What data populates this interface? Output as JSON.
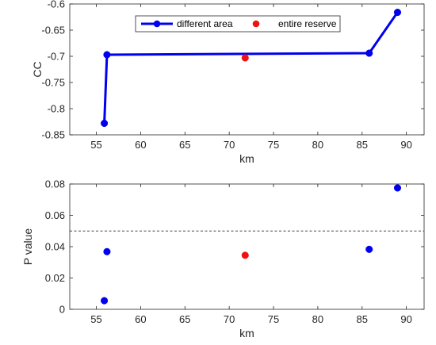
{
  "colors": {
    "series_blue": "#0000ee",
    "series_red": "#ee1111",
    "axis": "#262626",
    "threshold": "#444444"
  },
  "chart_data": [
    {
      "type": "line",
      "xlabel": "km",
      "ylabel": "CC",
      "xlim": [
        52,
        92
      ],
      "ylim": [
        -0.85,
        -0.6
      ],
      "xticks": [
        "55",
        "60",
        "65",
        "70",
        "75",
        "80",
        "85",
        "90"
      ],
      "yticks": [
        "-0.85",
        "-0.8",
        "-0.75",
        "-0.7",
        "-0.65",
        "-0.6"
      ],
      "legend_position": "top-center",
      "grid": false,
      "series": [
        {
          "name": "different area",
          "style": "line-marker",
          "x": [
            55.9,
            56.2,
            85.8,
            89.0
          ],
          "y": [
            -0.828,
            -0.697,
            -0.694,
            -0.616
          ]
        },
        {
          "name": "entire reserve",
          "style": "marker",
          "x": [
            71.8
          ],
          "y": [
            -0.703
          ]
        }
      ]
    },
    {
      "type": "scatter",
      "xlabel": "km",
      "ylabel": "P value",
      "xlim": [
        52,
        92
      ],
      "ylim": [
        0,
        0.08
      ],
      "xticks": [
        "55",
        "60",
        "65",
        "70",
        "75",
        "80",
        "85",
        "90"
      ],
      "yticks": [
        "0",
        "0.02",
        "0.04",
        "0.06",
        "0.08"
      ],
      "threshold": 0.05,
      "grid": false,
      "series": [
        {
          "style": "marker",
          "x": [
            55.9,
            56.2,
            85.8,
            89.0
          ],
          "y": [
            0.0055,
            0.0368,
            0.0383,
            0.0775
          ]
        },
        {
          "style": "marker",
          "x": [
            71.8
          ],
          "y": [
            0.0345
          ]
        }
      ]
    }
  ]
}
